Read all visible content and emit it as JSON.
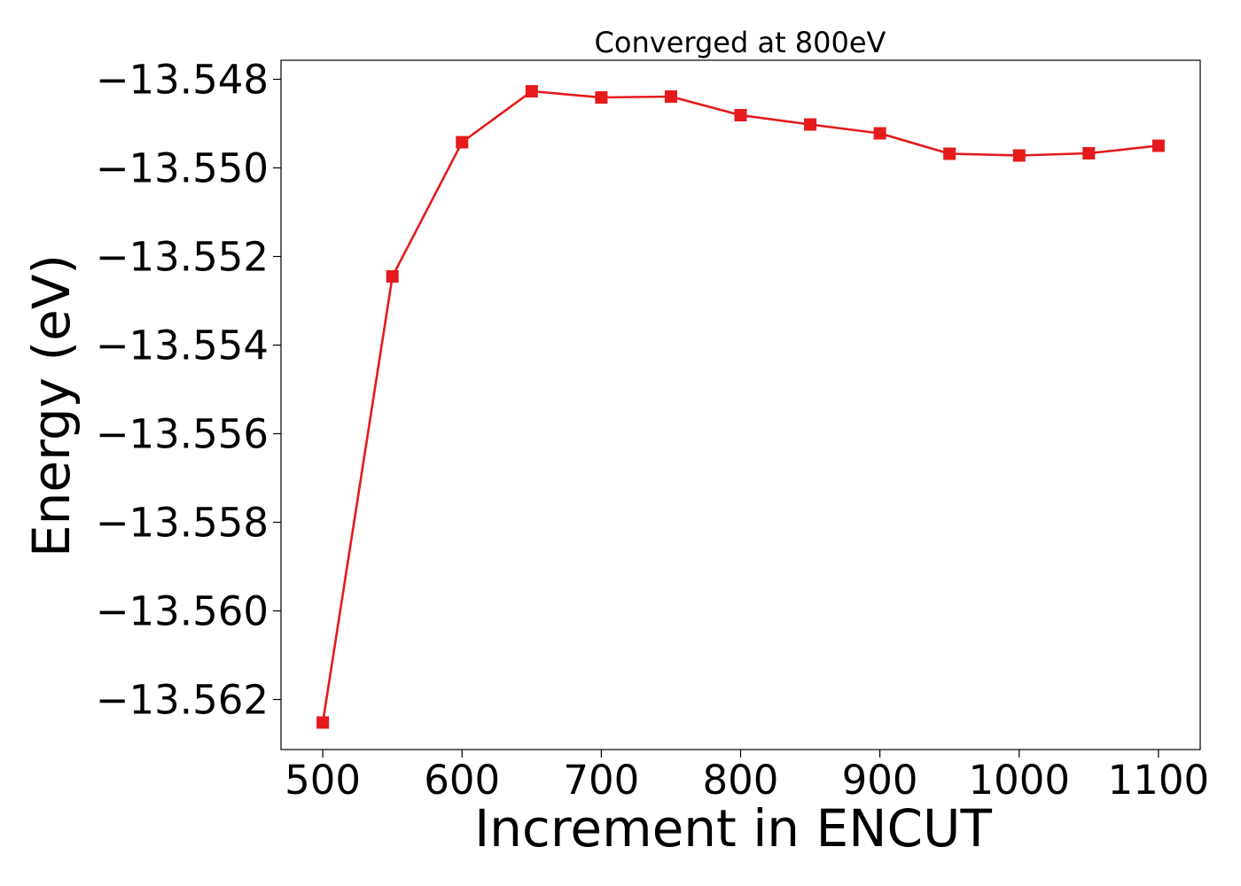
{
  "chart_data": {
    "type": "line",
    "title": "Converged at 800eV",
    "xlabel": "Increment in ENCUT",
    "ylabel": "Energy (eV)",
    "x": [
      500,
      550,
      600,
      650,
      700,
      750,
      800,
      850,
      900,
      950,
      1000,
      1050,
      1100
    ],
    "series": [
      {
        "values": [
          -13.56252,
          -13.55245,
          -13.54942,
          -13.54827,
          -13.54841,
          -13.54839,
          -13.54881,
          -13.54902,
          -13.54922,
          -13.54968,
          -13.54972,
          -13.54967,
          -13.5495
        ],
        "color": "#e41a1c",
        "marker": "square"
      }
    ],
    "xticks": [
      500,
      600,
      700,
      800,
      900,
      1000,
      1100
    ],
    "xtick_labels": [
      "500",
      "600",
      "700",
      "800",
      "900",
      "1000",
      "1100"
    ],
    "yticks": [
      -13.548,
      -13.55,
      -13.552,
      -13.554,
      -13.556,
      -13.558,
      -13.56,
      -13.562
    ],
    "ytick_labels": [
      "−13.548",
      "−13.550",
      "−13.552",
      "−13.554",
      "−13.556",
      "−13.558",
      "−13.560",
      "−13.562"
    ],
    "xlim": [
      470,
      1130
    ],
    "ylim": [
      -13.56313,
      -13.54757
    ],
    "grid": false,
    "legend": "none"
  }
}
